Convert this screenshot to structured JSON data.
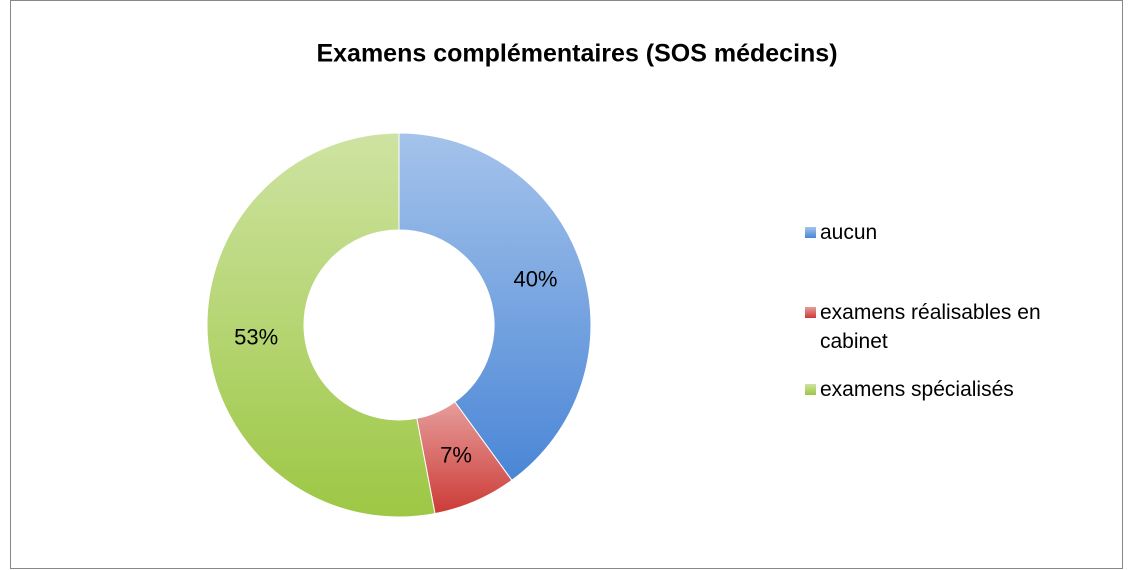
{
  "chart_data": {
    "type": "donut",
    "title": "Examens complémentaires (SOS médecins)",
    "categories": [
      "aucun",
      "examens réalisables en cabinet",
      "examens spécialisés"
    ],
    "values": [
      40,
      7,
      53
    ],
    "value_labels": [
      "40%",
      "7%",
      "53%"
    ],
    "colors": [
      "#4a86d6",
      "#cc3b36",
      "#9dc744"
    ],
    "legend": "right"
  }
}
